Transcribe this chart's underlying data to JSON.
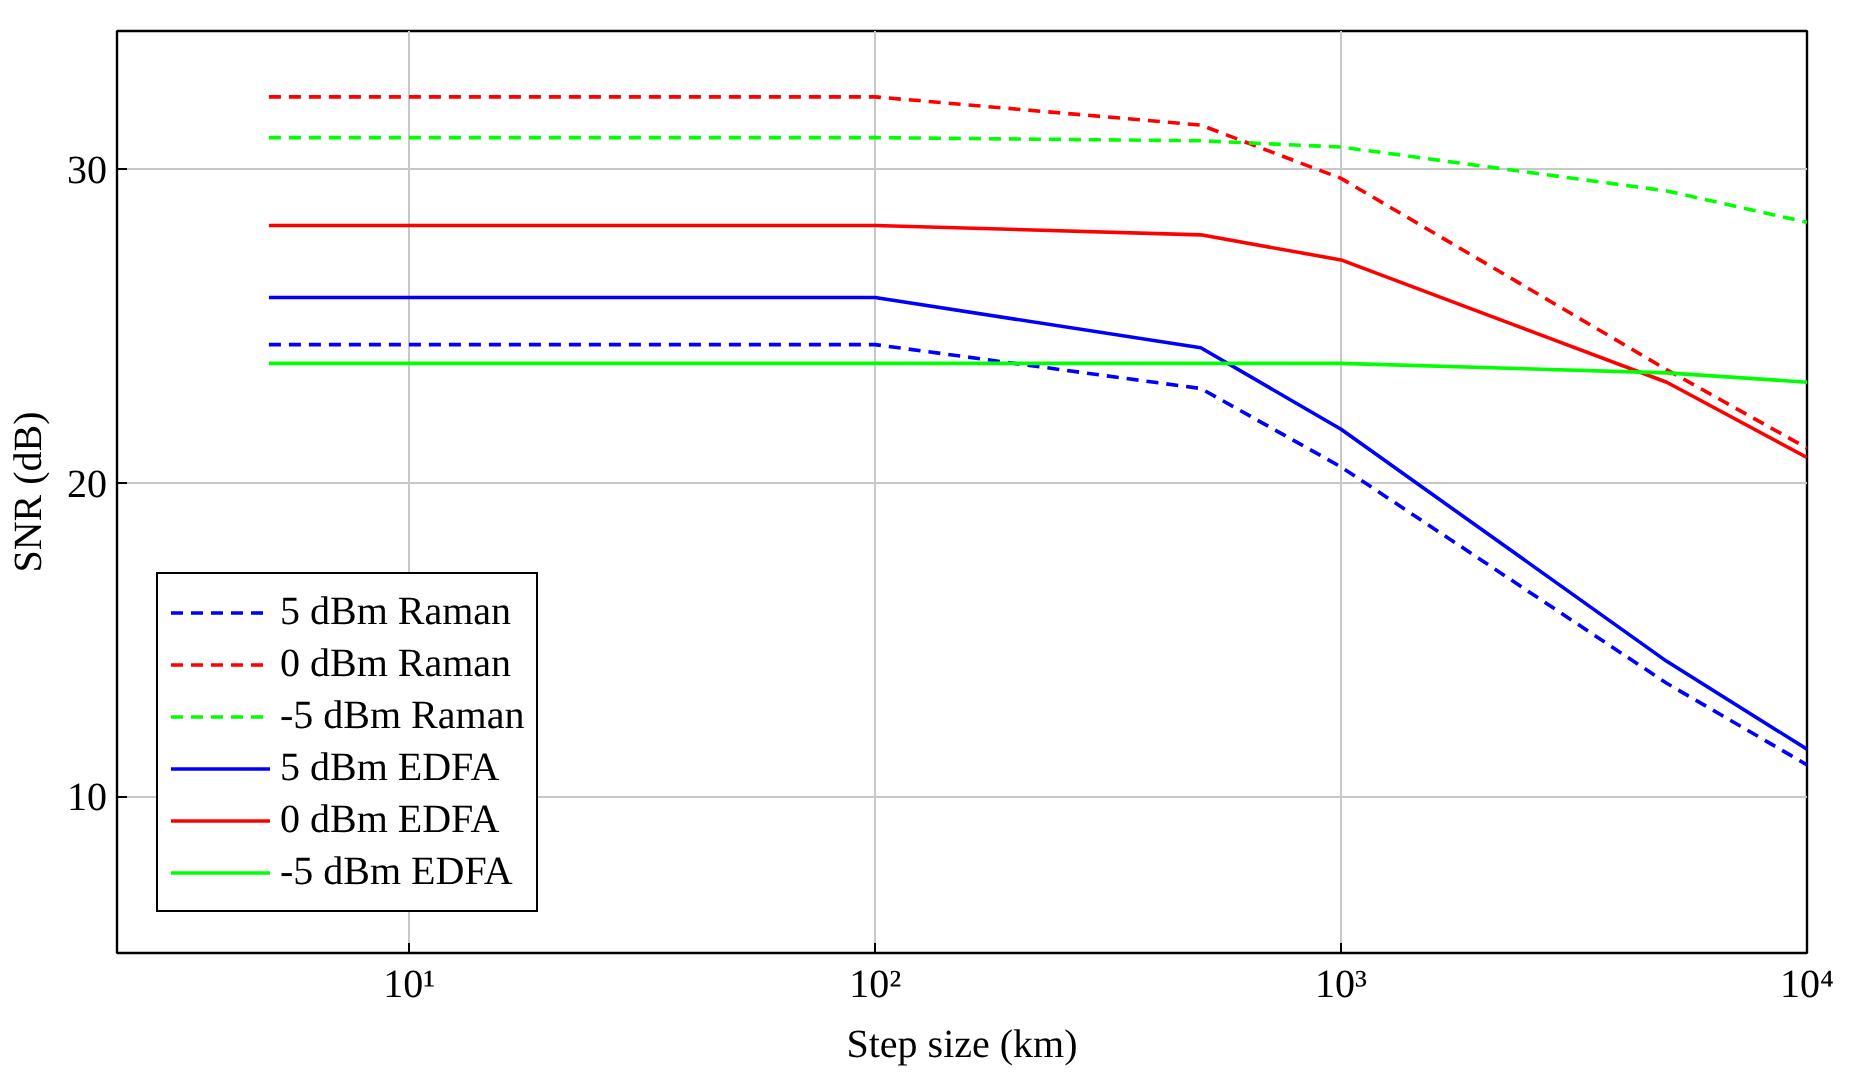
{
  "chart_data": {
    "type": "line",
    "xlabel": "Step size (km)",
    "ylabel": "SNR (dB)",
    "x": [
      5,
      100,
      500,
      1000,
      5000,
      10000
    ],
    "xlim": [
      2.36,
      10000
    ],
    "ylim": [
      5,
      34.4
    ],
    "log": "x",
    "xticks": [
      {
        "value": 10,
        "label": "10¹"
      },
      {
        "value": 100,
        "label": "10²"
      },
      {
        "value": 1000,
        "label": "10³"
      },
      {
        "value": 10000,
        "label": "10⁴"
      }
    ],
    "yticks": [
      10,
      20,
      30
    ],
    "grid": true,
    "legend": "bottom left",
    "marker": "none",
    "series": [
      {
        "name": "5 dBm Raman",
        "color": "#0000ff",
        "line_style": "dashed",
        "values": [
          24.4,
          24.4,
          23.0,
          20.5,
          13.6,
          11.0
        ]
      },
      {
        "name": "0 dBm Raman",
        "color": "#ff0000",
        "line_style": "dashed",
        "values": [
          32.3,
          32.3,
          31.4,
          29.7,
          23.6,
          21.1
        ]
      },
      {
        "name": "-5 dBm Raman",
        "color": "#00ff00",
        "line_style": "dashed",
        "values": [
          31.0,
          31.0,
          30.9,
          30.7,
          29.3,
          28.3
        ]
      },
      {
        "name": "5 dBm EDFA",
        "color": "#0000ff",
        "line_style": "solid",
        "values": [
          25.9,
          25.9,
          24.3,
          21.7,
          14.3,
          11.5
        ]
      },
      {
        "name": "0 dBm EDFA",
        "color": "#ff0000",
        "line_style": "solid",
        "values": [
          28.2,
          28.2,
          27.9,
          27.1,
          23.2,
          20.8
        ]
      },
      {
        "name": "-5 dBm EDFA",
        "color": "#00ff00",
        "line_style": "solid",
        "values": [
          23.8,
          23.8,
          23.8,
          23.8,
          23.5,
          23.2
        ]
      }
    ]
  }
}
